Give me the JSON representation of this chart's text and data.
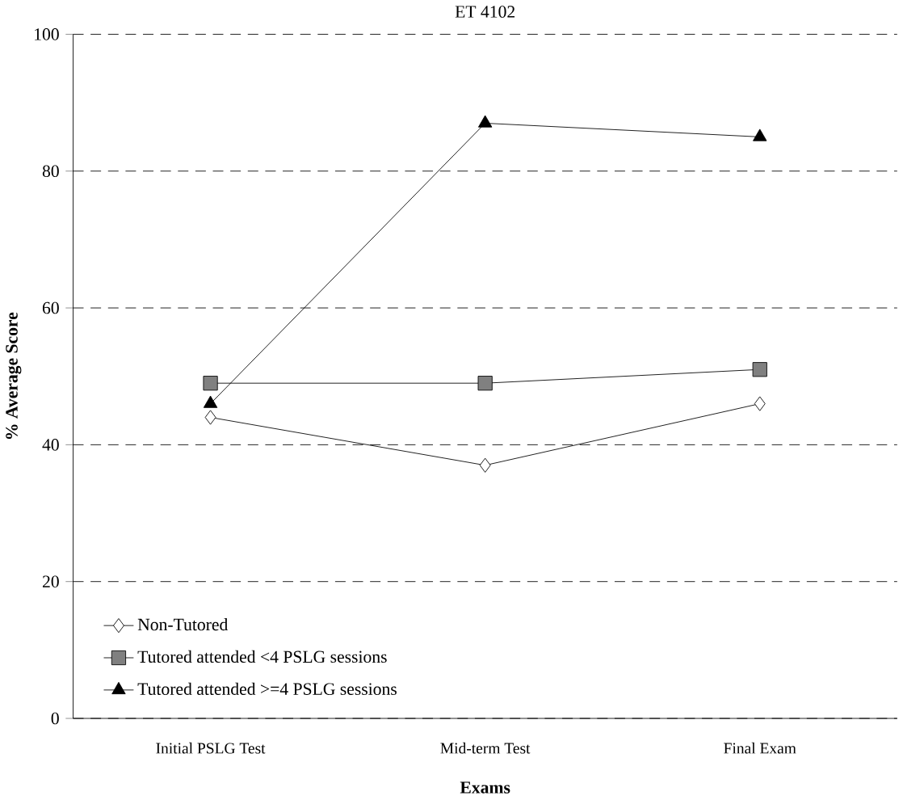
{
  "chart_data": {
    "type": "line",
    "title": "ET 4102",
    "xlabel": "Exams",
    "ylabel": "% Average Score",
    "categories": [
      "Initial PSLG Test",
      "Mid-term Test",
      "Final Exam"
    ],
    "series": [
      {
        "name": "Non-Tutored",
        "color": "#000000",
        "values": [
          44,
          37,
          46
        ],
        "marker": "diamond"
      },
      {
        "name": "Tutored attended <4 PSLG sessions",
        "color": "#000000",
        "values": [
          49,
          49,
          51
        ],
        "marker": "square"
      },
      {
        "name": "Tutored attended >=4 PSLG sessions",
        "color": "#000000",
        "values": [
          46,
          87,
          85
        ],
        "marker": "triangle"
      }
    ],
    "ylim": [
      0,
      100
    ],
    "yticks": [
      0,
      20,
      40,
      60,
      80,
      100
    ],
    "grid": "y",
    "legend": "bottom left",
    "line_style": "solid"
  }
}
